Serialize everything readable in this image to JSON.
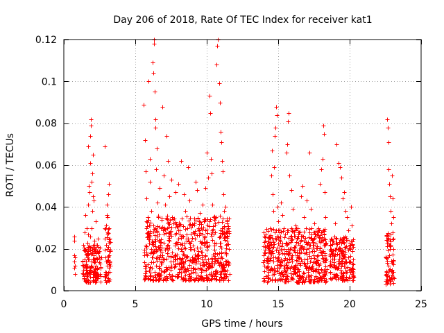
{
  "chart_data": {
    "type": "scatter",
    "title": "Day 206 of 2018, Rate Of TEC Index for receiver kat1",
    "xlabel": "GPS time / hours",
    "ylabel": "ROTI / TECUs",
    "xlim": [
      0,
      25
    ],
    "ylim": [
      0,
      0.12
    ],
    "x_ticks": [
      0,
      5,
      10,
      15,
      20,
      25
    ],
    "x_tick_labels": [
      "0",
      "5",
      "10",
      "15",
      "20",
      "25"
    ],
    "y_ticks": [
      0,
      0.02,
      0.04,
      0.06,
      0.08,
      0.1,
      0.12
    ],
    "y_tick_labels": [
      "0",
      "0.02",
      "0.04",
      "0.06",
      "0.08",
      "0.1",
      "0.12"
    ],
    "grid": true,
    "marker": "+",
    "color": "#ff0000",
    "series": [
      {
        "name": "ROTI",
        "points": [
          [
            0.72,
            0.026
          ],
          [
            0.72,
            0.024
          ],
          [
            0.75,
            0.017
          ],
          [
            0.75,
            0.014
          ],
          [
            0.75,
            0.011
          ],
          [
            0.78,
            0.008
          ],
          [
            0.8,
            0.012
          ],
          [
            0.8,
            0.016
          ],
          [
            1.35,
            0.012
          ],
          [
            1.35,
            0.008
          ],
          [
            1.38,
            0.022
          ],
          [
            1.4,
            0.006
          ],
          [
            1.45,
            0.015
          ],
          [
            1.5,
            0.019
          ],
          [
            1.5,
            0.036
          ],
          [
            1.55,
            0.01
          ],
          [
            1.6,
            0.03
          ],
          [
            1.6,
            0.004
          ],
          [
            1.65,
            0.023
          ],
          [
            1.7,
            0.041
          ],
          [
            1.7,
            0.069
          ],
          [
            1.75,
            0.015
          ],
          [
            1.8,
            0.008
          ],
          [
            1.8,
            0.047
          ],
          [
            1.85,
            0.074
          ],
          [
            1.85,
            0.026
          ],
          [
            1.9,
            0.082
          ],
          [
            1.9,
            0.079
          ],
          [
            1.95,
            0.052
          ],
          [
            1.95,
            0.012
          ],
          [
            2.0,
            0.056
          ],
          [
            2.0,
            0.038
          ],
          [
            2.05,
            0.065
          ],
          [
            2.05,
            0.005
          ],
          [
            2.1,
            0.043
          ],
          [
            2.1,
            0.017
          ],
          [
            2.15,
            0.024
          ],
          [
            2.2,
            0.011
          ],
          [
            2.25,
            0.033
          ],
          [
            2.3,
            0.008
          ],
          [
            2.35,
            0.019
          ],
          [
            2.4,
            0.025
          ],
          [
            2.5,
            0.013
          ],
          [
            2.55,
            0.007
          ],
          [
            2.6,
            0.016
          ],
          [
            1.45,
            0.028
          ],
          [
            1.65,
            0.018
          ],
          [
            1.75,
            0.05
          ],
          [
            1.85,
            0.061
          ],
          [
            1.95,
            0.03
          ],
          [
            2.05,
            0.045
          ],
          [
            2.15,
            0.008
          ],
          [
            2.25,
            0.019
          ],
          [
            2.45,
            0.021
          ],
          [
            1.55,
            0.014
          ],
          [
            1.7,
            0.027
          ],
          [
            2.85,
            0.069
          ],
          [
            2.9,
            0.008
          ],
          [
            2.9,
            0.016
          ],
          [
            2.95,
            0.022
          ],
          [
            2.95,
            0.031
          ],
          [
            3.0,
            0.036
          ],
          [
            3.0,
            0.041
          ],
          [
            3.05,
            0.028
          ],
          [
            3.05,
            0.012
          ],
          [
            3.1,
            0.046
          ],
          [
            3.1,
            0.005
          ],
          [
            3.15,
            0.051
          ],
          [
            3.15,
            0.019
          ],
          [
            3.2,
            0.025
          ],
          [
            3.2,
            0.009
          ],
          [
            2.95,
            0.014
          ],
          [
            3.05,
            0.035
          ],
          [
            3.15,
            0.03
          ],
          [
            5.6,
            0.089
          ],
          [
            5.7,
            0.072
          ],
          [
            5.75,
            0.057
          ],
          [
            5.8,
            0.044
          ],
          [
            5.85,
            0.035
          ],
          [
            5.9,
            0.1
          ],
          [
            5.9,
            0.028
          ],
          [
            6.0,
            0.063
          ],
          [
            6.0,
            0.052
          ],
          [
            6.05,
            0.018
          ],
          [
            6.1,
            0.038
          ],
          [
            6.15,
            0.024
          ],
          [
            6.2,
            0.109
          ],
          [
            6.25,
            0.104
          ],
          [
            6.3,
            0.118
          ],
          [
            6.3,
            0.12
          ],
          [
            6.35,
            0.095
          ],
          [
            6.4,
            0.082
          ],
          [
            6.4,
            0.078
          ],
          [
            6.45,
            0.058
          ],
          [
            6.5,
            0.068
          ],
          [
            6.55,
            0.042
          ],
          [
            6.6,
            0.035
          ],
          [
            6.7,
            0.049
          ],
          [
            6.8,
            0.03
          ],
          [
            6.9,
            0.088
          ],
          [
            7.0,
            0.055
          ],
          [
            7.1,
            0.041
          ],
          [
            7.2,
            0.074
          ],
          [
            7.3,
            0.062
          ],
          [
            7.4,
            0.045
          ],
          [
            7.5,
            0.053
          ],
          [
            7.6,
            0.034
          ],
          [
            7.8,
            0.047
          ],
          [
            8.0,
            0.051
          ],
          [
            8.1,
            0.029
          ],
          [
            8.2,
            0.062
          ],
          [
            8.4,
            0.046
          ],
          [
            8.5,
            0.038
          ],
          [
            8.7,
            0.059
          ],
          [
            8.8,
            0.043
          ],
          [
            9.0,
            0.031
          ],
          [
            9.2,
            0.052
          ],
          [
            9.3,
            0.048
          ],
          [
            9.5,
            0.037
          ],
          [
            9.7,
            0.041
          ],
          [
            9.9,
            0.049
          ],
          [
            10.0,
            0.066
          ],
          [
            10.1,
            0.054
          ],
          [
            10.2,
            0.093
          ],
          [
            10.25,
            0.085
          ],
          [
            10.3,
            0.063
          ],
          [
            10.35,
            0.056
          ],
          [
            10.4,
            0.041
          ],
          [
            10.5,
            0.035
          ],
          [
            10.6,
            0.028
          ],
          [
            10.7,
            0.108
          ],
          [
            10.75,
            0.117
          ],
          [
            10.8,
            0.12
          ],
          [
            10.85,
            0.099
          ],
          [
            10.9,
            0.09
          ],
          [
            10.95,
            0.076
          ],
          [
            11.0,
            0.071
          ],
          [
            11.05,
            0.062
          ],
          [
            11.1,
            0.057
          ],
          [
            11.15,
            0.046
          ],
          [
            11.2,
            0.038
          ],
          [
            11.3,
            0.04
          ],
          [
            11.4,
            0.032
          ],
          [
            11.5,
            0.03
          ],
          [
            5.8,
            0.012
          ],
          [
            6.2,
            0.016
          ],
          [
            6.6,
            0.021
          ],
          [
            7.0,
            0.009
          ],
          [
            7.4,
            0.024
          ],
          [
            7.8,
            0.015
          ],
          [
            8.2,
            0.011
          ],
          [
            8.6,
            0.027
          ],
          [
            9.0,
            0.014
          ],
          [
            9.4,
            0.019
          ],
          [
            9.8,
            0.022
          ],
          [
            10.2,
            0.008
          ],
          [
            10.6,
            0.018
          ],
          [
            11.0,
            0.013
          ],
          [
            11.4,
            0.024
          ],
          [
            5.9,
            0.006
          ],
          [
            6.5,
            0.008
          ],
          [
            7.2,
            0.005
          ],
          [
            8.0,
            0.007
          ],
          [
            8.8,
            0.006
          ],
          [
            9.6,
            0.009
          ],
          [
            10.4,
            0.007
          ],
          [
            11.2,
            0.01
          ],
          [
            14.0,
            0.028
          ],
          [
            14.05,
            0.012
          ],
          [
            14.1,
            0.018
          ],
          [
            14.2,
            0.022
          ],
          [
            14.3,
            0.009
          ],
          [
            14.4,
            0.03
          ],
          [
            14.5,
            0.055
          ],
          [
            14.55,
            0.067
          ],
          [
            14.6,
            0.046
          ],
          [
            14.65,
            0.038
          ],
          [
            14.7,
            0.059
          ],
          [
            14.75,
            0.074
          ],
          [
            14.8,
            0.078
          ],
          [
            14.85,
            0.088
          ],
          [
            14.9,
            0.084
          ],
          [
            14.95,
            0.04
          ],
          [
            15.0,
            0.033
          ],
          [
            15.1,
            0.025
          ],
          [
            15.2,
            0.042
          ],
          [
            15.3,
            0.036
          ],
          [
            15.4,
            0.03
          ],
          [
            15.5,
            0.027
          ],
          [
            15.6,
            0.066
          ],
          [
            15.65,
            0.07
          ],
          [
            15.7,
            0.081
          ],
          [
            15.75,
            0.085
          ],
          [
            15.8,
            0.055
          ],
          [
            15.9,
            0.048
          ],
          [
            16.0,
            0.039
          ],
          [
            16.2,
            0.031
          ],
          [
            16.4,
            0.028
          ],
          [
            16.5,
            0.022
          ],
          [
            16.6,
            0.045
          ],
          [
            16.7,
            0.05
          ],
          [
            16.8,
            0.035
          ],
          [
            17.0,
            0.043
          ],
          [
            17.2,
            0.066
          ],
          [
            17.3,
            0.039
          ],
          [
            17.5,
            0.032
          ],
          [
            17.6,
            0.026
          ],
          [
            17.8,
            0.03
          ],
          [
            17.9,
            0.051
          ],
          [
            18.0,
            0.058
          ],
          [
            18.1,
            0.063
          ],
          [
            18.15,
            0.079
          ],
          [
            18.2,
            0.075
          ],
          [
            18.25,
            0.047
          ],
          [
            18.3,
            0.035
          ],
          [
            14.2,
            0.014
          ],
          [
            14.6,
            0.01
          ],
          [
            15.0,
            0.016
          ],
          [
            15.4,
            0.012
          ],
          [
            15.8,
            0.018
          ],
          [
            16.2,
            0.009
          ],
          [
            16.6,
            0.015
          ],
          [
            17.0,
            0.011
          ],
          [
            17.4,
            0.019
          ],
          [
            17.8,
            0.013
          ],
          [
            18.2,
            0.008
          ],
          [
            14.8,
            0.005
          ],
          [
            15.6,
            0.006
          ],
          [
            16.4,
            0.004
          ],
          [
            17.2,
            0.007
          ],
          [
            18.0,
            0.006
          ],
          [
            18.6,
            0.012
          ],
          [
            18.7,
            0.025
          ],
          [
            18.8,
            0.018
          ],
          [
            18.9,
            0.008
          ],
          [
            19.0,
            0.032
          ],
          [
            19.1,
            0.07
          ],
          [
            19.2,
            0.061
          ],
          [
            19.3,
            0.059
          ],
          [
            19.4,
            0.054
          ],
          [
            19.5,
            0.044
          ],
          [
            19.6,
            0.047
          ],
          [
            19.7,
            0.038
          ],
          [
            19.8,
            0.035
          ],
          [
            19.9,
            0.029
          ],
          [
            20.0,
            0.022
          ],
          [
            20.1,
            0.04
          ],
          [
            20.15,
            0.031
          ],
          [
            20.2,
            0.019
          ],
          [
            20.25,
            0.015
          ],
          [
            19.0,
            0.011
          ],
          [
            19.4,
            0.014
          ],
          [
            19.8,
            0.009
          ],
          [
            20.1,
            0.01
          ],
          [
            18.8,
            0.006
          ],
          [
            22.5,
            0.016
          ],
          [
            22.55,
            0.008
          ],
          [
            22.6,
            0.082
          ],
          [
            22.65,
            0.078
          ],
          [
            22.7,
            0.071
          ],
          [
            22.7,
            0.058
          ],
          [
            22.75,
            0.051
          ],
          [
            22.8,
            0.045
          ],
          [
            22.85,
            0.038
          ],
          [
            22.9,
            0.032
          ],
          [
            22.95,
            0.055
          ],
          [
            23.0,
            0.044
          ],
          [
            23.05,
            0.035
          ],
          [
            23.05,
            0.025
          ],
          [
            22.7,
            0.012
          ],
          [
            22.8,
            0.02
          ],
          [
            22.9,
            0.006
          ],
          [
            23.0,
            0.014
          ],
          [
            22.6,
            0.004
          ],
          [
            22.85,
            0.027
          ]
        ]
      }
    ],
    "dense_clusters": [
      {
        "x_range": [
          1.3,
          2.6
        ],
        "y_range": [
          0.004,
          0.022
        ]
      },
      {
        "x_range": [
          2.85,
          3.25
        ],
        "y_range": [
          0.004,
          0.03
        ]
      },
      {
        "x_range": [
          5.6,
          11.6
        ],
        "y_range": [
          0.005,
          0.036
        ]
      },
      {
        "x_range": [
          13.95,
          18.4
        ],
        "y_range": [
          0.004,
          0.03
        ]
      },
      {
        "x_range": [
          18.6,
          20.3
        ],
        "y_range": [
          0.005,
          0.026
        ]
      },
      {
        "x_range": [
          22.5,
          23.1
        ],
        "y_range": [
          0.003,
          0.028
        ]
      }
    ]
  }
}
